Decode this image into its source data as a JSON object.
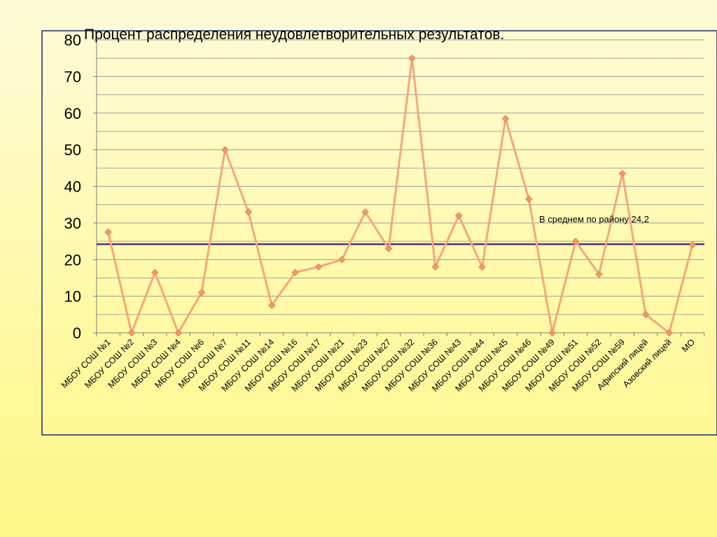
{
  "chart_data": {
    "type": "line",
    "title": "Процент распределения неудовлетворительных результатов.",
    "xlabel": "",
    "ylabel": "",
    "ylim": [
      0,
      80
    ],
    "y_ticks": [
      0,
      10,
      20,
      30,
      40,
      50,
      60,
      70,
      80
    ],
    "grid": true,
    "categories": [
      "МБОУ СОШ №1",
      "МБОУ СОШ №2",
      "МБОУ СОШ №3",
      "МБОУ СОШ №4",
      "МБОУ СОШ №6",
      "МБОУ СОШ №7",
      "МБОУ СОШ №11",
      "МБОУ СОШ №14",
      "МБОУ СОШ №16",
      "МБОУ СОШ №17",
      "МБОУ СОШ №21",
      "МБОУ СОШ №23",
      "МБОУ СОШ №27",
      "МБОУ СОШ №32",
      "МБОУ СОШ №36",
      "МБОУ СОШ №43",
      "МБОУ СОШ №44",
      "МБОУ СОШ №45",
      "МБОУ СОШ №46",
      "МБОУ СОШ №49",
      "МБОУ СОШ №51",
      "МБОУ СОШ №52",
      "МБОУ СОШ №59",
      "Афипский лицей",
      "Азовский лицей",
      "МО"
    ],
    "series": [
      {
        "values": [
          27.5,
          0,
          16.5,
          0,
          11,
          50,
          33,
          7.5,
          16.5,
          18,
          20,
          33,
          23,
          75,
          18,
          32,
          18,
          58.5,
          36.5,
          0,
          25,
          16,
          43.5,
          5,
          0,
          24
        ]
      }
    ],
    "reference_line": {
      "value": 24.2,
      "label": "В среднем по району 24,2"
    },
    "colors": {
      "line": "#f4a77c",
      "marker": "#f19a6a",
      "reference": "#5b2a86",
      "grid": "#9a9a9a",
      "axis_text": "#000000"
    }
  }
}
